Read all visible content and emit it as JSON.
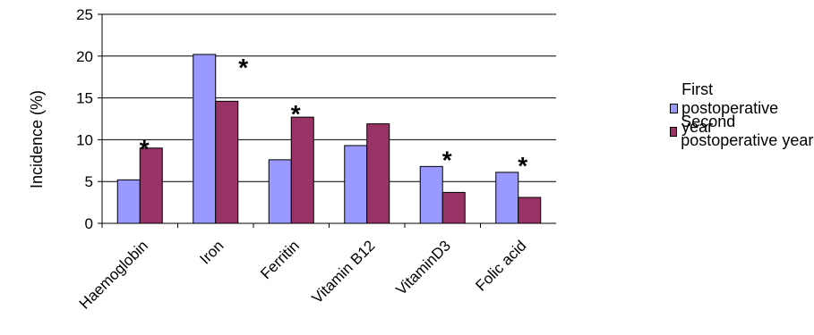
{
  "chart_data": {
    "type": "bar",
    "categories": [
      "Haemoglobin",
      "Iron",
      "Ferritin",
      "Vitamin B12",
      "VitaminD3",
      "Folic acid"
    ],
    "series": [
      {
        "name": "First postoperative year",
        "values": [
          5.2,
          20.2,
          7.6,
          9.3,
          6.8,
          6.1
        ],
        "color": "#9999ff"
      },
      {
        "name": "Second postoperative year",
        "values": [
          9.0,
          14.6,
          12.7,
          11.9,
          3.7,
          3.1
        ],
        "color": "#993366"
      }
    ],
    "significance": [
      "*",
      "*",
      "*",
      "",
      "*",
      "*"
    ],
    "ylabel": "Incidence (%)",
    "ylim": [
      0,
      25
    ],
    "yticks": [
      0,
      5,
      10,
      15,
      20,
      25
    ],
    "grid": "horizontal",
    "legend_position": "right"
  }
}
